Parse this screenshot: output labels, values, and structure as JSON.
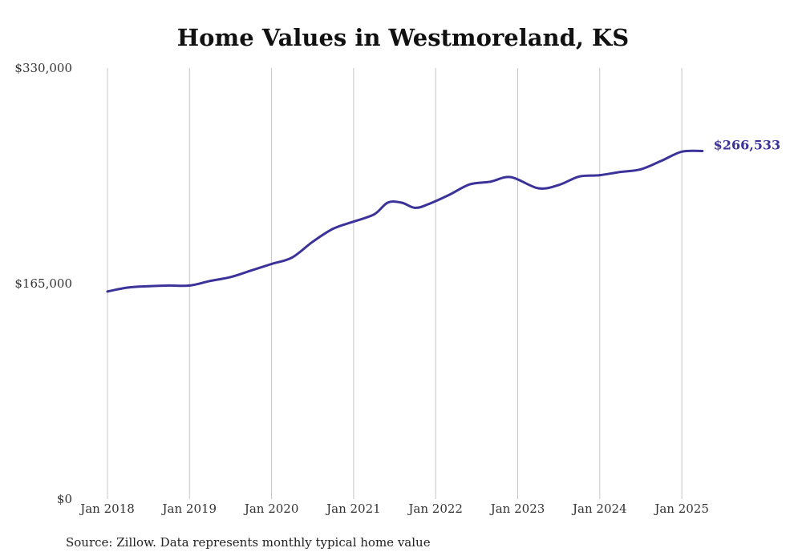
{
  "chart_data": {
    "type": "line",
    "title": "Home Values in Westmoreland, KS",
    "xlabel": "",
    "ylabel": "",
    "ylim": [
      0,
      330000
    ],
    "y_ticks": [
      {
        "value": 0,
        "label": "$0"
      },
      {
        "value": 165000,
        "label": "$165,000"
      },
      {
        "value": 330000,
        "label": "$330,000"
      }
    ],
    "x_ticks": [
      {
        "value": "2018-01",
        "label": "Jan 2018"
      },
      {
        "value": "2019-01",
        "label": "Jan 2019"
      },
      {
        "value": "2020-01",
        "label": "Jan 2020"
      },
      {
        "value": "2021-01",
        "label": "Jan 2021"
      },
      {
        "value": "2022-01",
        "label": "Jan 2022"
      },
      {
        "value": "2023-01",
        "label": "Jan 2023"
      },
      {
        "value": "2024-01",
        "label": "Jan 2024"
      },
      {
        "value": "2025-01",
        "label": "Jan 2025"
      }
    ],
    "grid": {
      "vertical": true,
      "horizontal": false
    },
    "series": [
      {
        "color": "#3b3399",
        "points": [
          {
            "x": "2018-01",
            "y": 159000
          },
          {
            "x": "2018-04",
            "y": 162000
          },
          {
            "x": "2018-07",
            "y": 163000
          },
          {
            "x": "2018-10",
            "y": 163500
          },
          {
            "x": "2019-01",
            "y": 163500
          },
          {
            "x": "2019-04",
            "y": 167000
          },
          {
            "x": "2019-07",
            "y": 170000
          },
          {
            "x": "2019-10",
            "y": 175000
          },
          {
            "x": "2020-01",
            "y": 180000
          },
          {
            "x": "2020-04",
            "y": 185000
          },
          {
            "x": "2020-07",
            "y": 197000
          },
          {
            "x": "2020-10",
            "y": 207000
          },
          {
            "x": "2021-01",
            "y": 212500
          },
          {
            "x": "2021-04",
            "y": 218000
          },
          {
            "x": "2021-06",
            "y": 227000
          },
          {
            "x": "2021-08",
            "y": 227000
          },
          {
            "x": "2021-10",
            "y": 223000
          },
          {
            "x": "2021-12",
            "y": 226000
          },
          {
            "x": "2022-03",
            "y": 233000
          },
          {
            "x": "2022-06",
            "y": 241000
          },
          {
            "x": "2022-09",
            "y": 243000
          },
          {
            "x": "2022-12",
            "y": 246500
          },
          {
            "x": "2023-04",
            "y": 238000
          },
          {
            "x": "2023-07",
            "y": 240500
          },
          {
            "x": "2023-10",
            "y": 247000
          },
          {
            "x": "2024-01",
            "y": 248000
          },
          {
            "x": "2024-04",
            "y": 250500
          },
          {
            "x": "2024-07",
            "y": 252500
          },
          {
            "x": "2024-10",
            "y": 259000
          },
          {
            "x": "2025-01",
            "y": 266000
          },
          {
            "x": "2025-04",
            "y": 266533
          }
        ],
        "end_label": "$266,533"
      }
    ],
    "source": "Source: Zillow. Data represents monthly typical home value"
  }
}
